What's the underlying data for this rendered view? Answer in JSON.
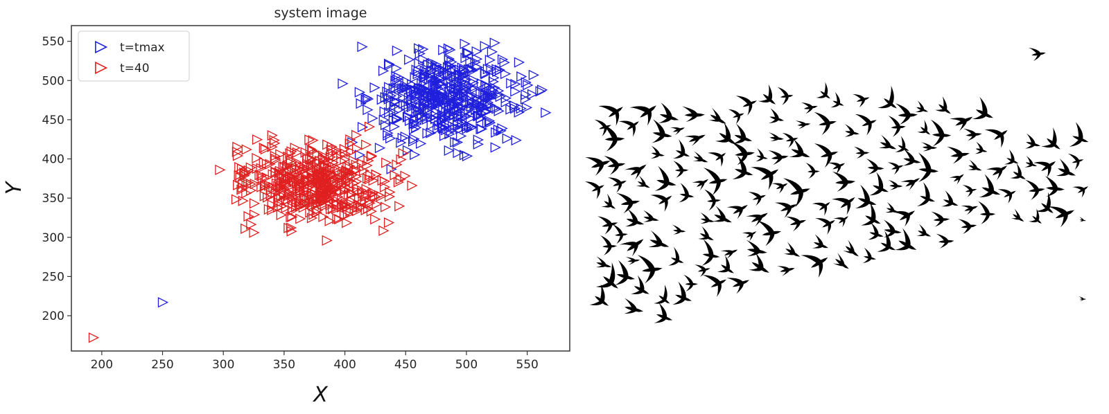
{
  "chart_data": [
    {
      "type": "scatter",
      "title": "system image",
      "xlabel": "X",
      "ylabel": "Y",
      "xlim": [
        175,
        585
      ],
      "ylim": [
        155,
        570
      ],
      "xticks": [
        200,
        250,
        300,
        350,
        400,
        450,
        500,
        550
      ],
      "yticks": [
        200,
        250,
        300,
        350,
        400,
        450,
        500,
        550
      ],
      "grid": false,
      "legend_placement": "top-left",
      "marker": "right-pointing-triangle-outline",
      "series": [
        {
          "name": "t=tmax",
          "color": "#1f1fdc",
          "cluster": {
            "center": [
              484,
              478
            ],
            "spread": [
              30,
              28
            ],
            "count": 460,
            "range_x": [
              400,
              562
            ],
            "range_y": [
              403,
              548
            ]
          },
          "points": [
            [
              250,
              217
            ],
            [
              414,
              543
            ],
            [
              523,
              548
            ],
            [
              565,
              459
            ],
            [
              562,
              488
            ],
            [
              398,
              496
            ],
            [
              438,
              387
            ],
            [
              412,
              405
            ],
            [
              545,
              505
            ],
            [
              555,
              507
            ],
            [
              435,
              430
            ]
          ]
        },
        {
          "name": "t=40",
          "color": "#e02020",
          "cluster": {
            "center": [
              375,
              370
            ],
            "spread": [
              30,
              25
            ],
            "count": 460,
            "range_x": [
              305,
              450
            ],
            "range_y": [
              296,
              436
            ]
          },
          "points": [
            [
              193,
              172
            ],
            [
              297,
              386
            ],
            [
              455,
              366
            ],
            [
              340,
              430
            ],
            [
              325,
              306
            ],
            [
              318,
              311
            ],
            [
              385,
              296
            ],
            [
              420,
              441
            ],
            [
              311,
              409
            ],
            [
              342,
              420
            ]
          ]
        }
      ]
    }
  ],
  "bird_flock": {
    "count": 170,
    "color": "#000000"
  }
}
